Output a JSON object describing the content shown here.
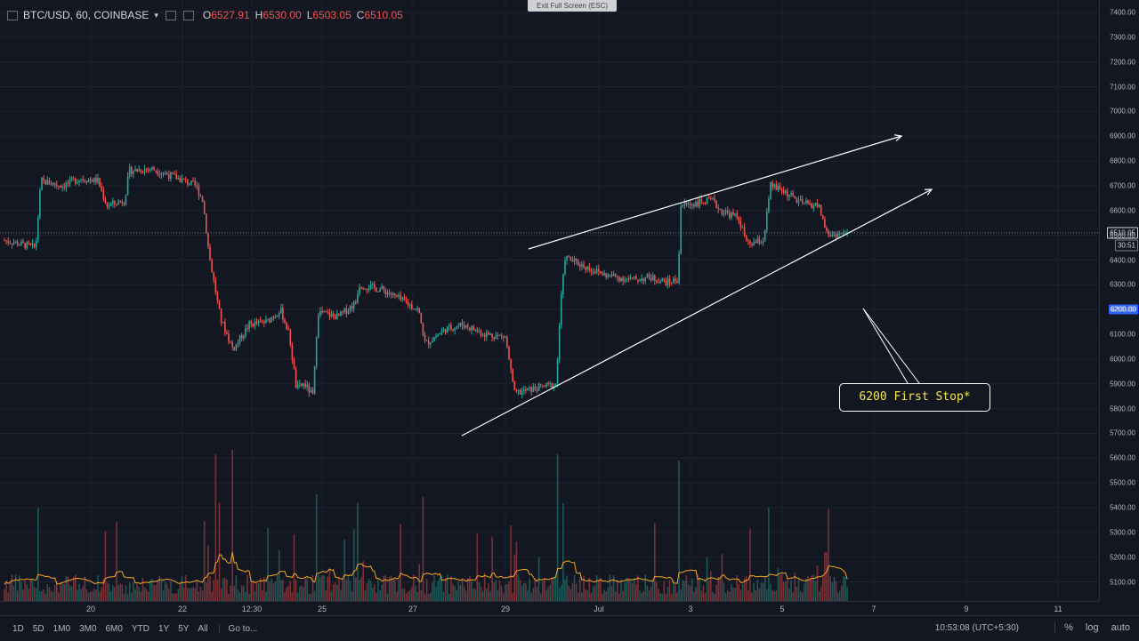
{
  "legend": {
    "symbol": "BTC/USD, 60, COINBASE",
    "ohlc": [
      {
        "key": "O",
        "value": "6527.91"
      },
      {
        "key": "H",
        "value": "6530.00"
      },
      {
        "key": "L",
        "value": "6503.05"
      },
      {
        "key": "C",
        "value": "6510.05"
      }
    ]
  },
  "exit_fullscreen": "Exit Full Screen (ESC)",
  "price_axis": {
    "ticks": [
      "7400.00",
      "7300.00",
      "7200.00",
      "7100.00",
      "7000.00",
      "6900.00",
      "6800.00",
      "6700.00",
      "6600.00",
      "6500.00",
      "6400.00",
      "6300.00",
      "6200.00",
      "6100.00",
      "6000.00",
      "5900.00",
      "5800.00",
      "5700.00",
      "5600.00",
      "5500.00",
      "5400.00",
      "5300.00",
      "5200.00",
      "5100.00"
    ],
    "current_price": "6510.05",
    "countdown": "30:51",
    "alert_price": "6200.00"
  },
  "time_axis": {
    "ticks": [
      "20",
      "22",
      "12:30",
      "25",
      "27",
      "29",
      "Jul",
      "3",
      "5",
      "7",
      "9",
      "11"
    ]
  },
  "annotation": "6200 First Stop*",
  "bottom_bar": {
    "timeframes": [
      "1D",
      "5D",
      "1M0",
      "3M0",
      "6M0",
      "YTD",
      "1Y",
      "5Y",
      "All"
    ],
    "goto": "Go to...",
    "clock": "10:53:08 (UTC+5:30)",
    "options": [
      "%",
      "log",
      "auto"
    ]
  },
  "colors": {
    "background": "#131722",
    "up": "#26a69a",
    "down": "#ef5350",
    "volume_ma": "#f5a623",
    "annotation_text": "#f5e84a",
    "alert": "#2962ff"
  }
}
